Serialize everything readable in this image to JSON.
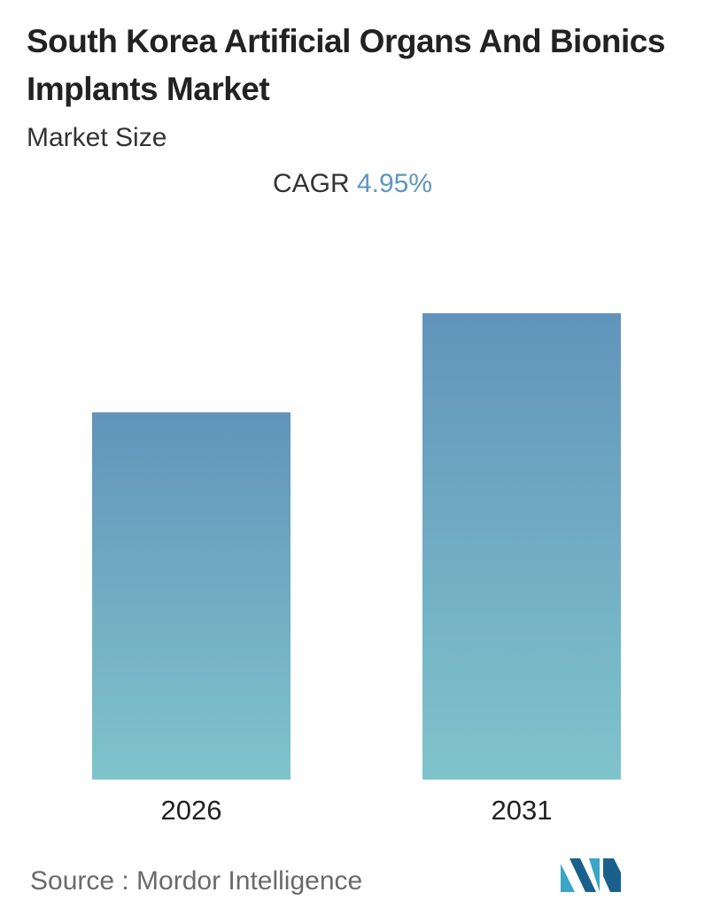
{
  "title": "South Korea Artificial Organs And Bionics Implants Market",
  "subtitle": "Market Size",
  "cagr": {
    "label": "CAGR",
    "value": "4.95%"
  },
  "source": {
    "text": "Source :  Mordor Intelligence"
  },
  "logo": {
    "icon": "mordor-intelligence-logo-icon",
    "colors": [
      "#3aa5c6",
      "#1b5f8c"
    ]
  },
  "chart_data": {
    "type": "bar",
    "categories": [
      "2026",
      "2031"
    ],
    "values": [
      1.0,
      1.27
    ],
    "value_note": "relative bar heights; no values printed",
    "ylim": [
      0,
      1.3
    ],
    "grid": false,
    "legend": "none",
    "bar_gradient": {
      "top": "#6294bb",
      "bottom": "#7fc4cb"
    }
  }
}
